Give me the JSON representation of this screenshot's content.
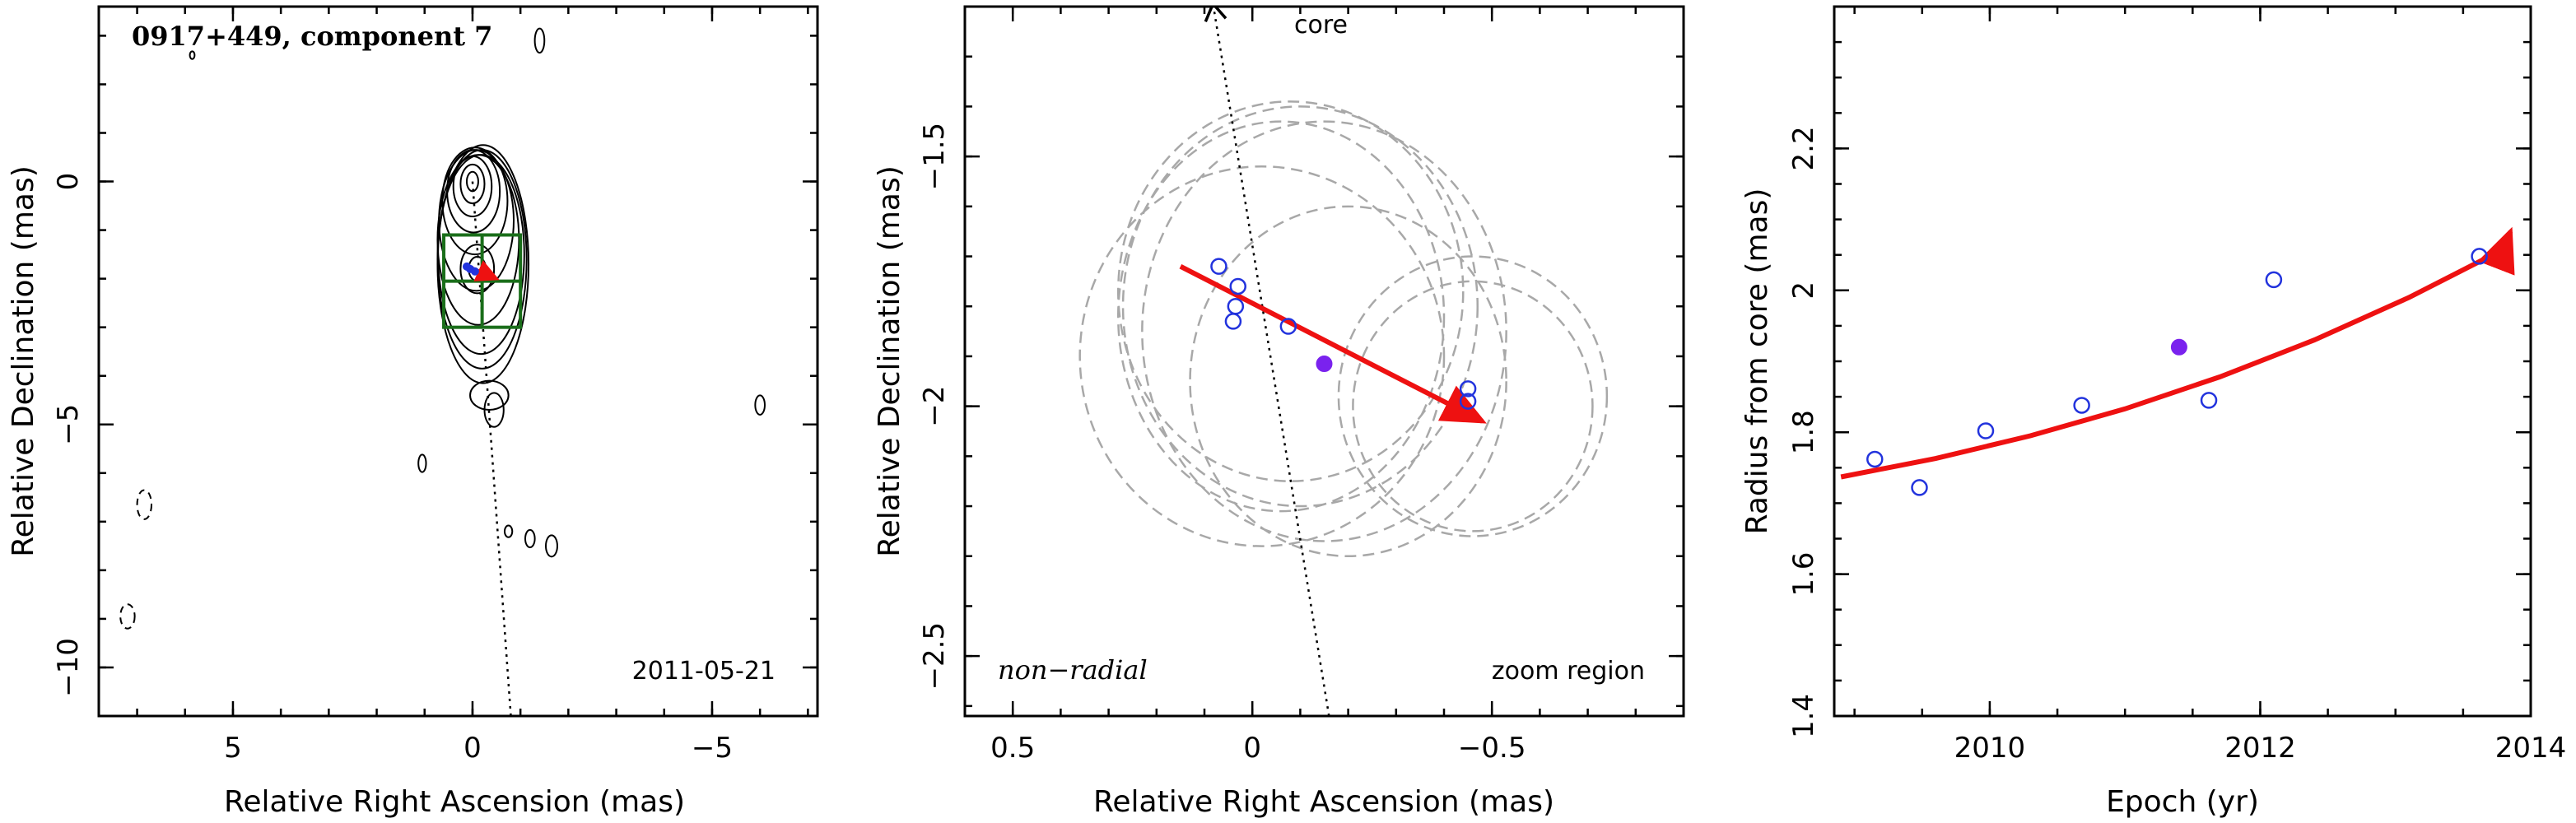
{
  "chart_data": [
    {
      "type": "contour",
      "title": "0917+449, component 7",
      "epoch_label": "2011-05-21",
      "xlabel": "Relative Right Ascension (mas)",
      "ylabel": "Relative Declination (mas)",
      "xlim": [
        7.8,
        -7.2
      ],
      "ylim": [
        -11.0,
        3.6
      ],
      "xticks": [
        5,
        0,
        -5
      ],
      "xtick_labels": [
        "5",
        "0",
        "−5"
      ],
      "yticks": [
        0,
        -5,
        -10
      ],
      "ytick_labels": [
        "0",
        "−5",
        "−10"
      ],
      "zoom_box": {
        "x": [
          0.6,
          -1.0
        ],
        "y": [
          -1.1,
          -3.0
        ]
      },
      "contours_positive": [
        {
          "cx": 0.0,
          "cy": 0.0,
          "rx": 0.12,
          "ry": 0.2
        },
        {
          "cx": 0.0,
          "cy": -0.05,
          "rx": 0.25,
          "ry": 0.4
        },
        {
          "cx": 0.0,
          "cy": -0.1,
          "rx": 0.4,
          "ry": 0.62
        },
        {
          "cx": -0.02,
          "cy": -0.2,
          "rx": 0.55,
          "ry": 0.85
        },
        {
          "cx": -0.05,
          "cy": -0.4,
          "rx": 0.68,
          "ry": 1.1
        },
        {
          "cx": -0.08,
          "cy": -0.8,
          "rx": 0.78,
          "ry": 1.45
        },
        {
          "cx": -0.12,
          "cy": -1.2,
          "rx": 0.85,
          "ry": 1.75
        },
        {
          "cx": -0.18,
          "cy": -1.5,
          "rx": 0.9,
          "ry": 2.05
        },
        {
          "cx": -0.2,
          "cy": -1.6,
          "rx": 0.93,
          "ry": 2.25
        },
        {
          "cx": -0.22,
          "cy": -1.7,
          "rx": 0.95,
          "ry": 2.45
        },
        {
          "cx": -0.1,
          "cy": -1.8,
          "rx": 0.35,
          "ry": 0.5
        },
        {
          "cx": -0.1,
          "cy": -1.8,
          "rx": 0.18,
          "ry": 0.25
        },
        {
          "cx": -0.35,
          "cy": -4.4,
          "rx": 0.4,
          "ry": 0.3
        },
        {
          "cx": -0.45,
          "cy": -4.7,
          "rx": 0.2,
          "ry": 0.35
        },
        {
          "cx": -1.4,
          "cy": 2.9,
          "rx": 0.1,
          "ry": 0.25
        },
        {
          "cx": 1.05,
          "cy": -5.8,
          "rx": 0.08,
          "ry": 0.18
        },
        {
          "cx": -6.0,
          "cy": -4.6,
          "rx": 0.1,
          "ry": 0.2
        },
        {
          "cx": -0.75,
          "cy": -7.2,
          "rx": 0.08,
          "ry": 0.12
        },
        {
          "cx": -1.2,
          "cy": -7.35,
          "rx": 0.1,
          "ry": 0.18
        },
        {
          "cx": -1.65,
          "cy": -7.5,
          "rx": 0.12,
          "ry": 0.22
        },
        {
          "cx": 5.85,
          "cy": 2.6,
          "rx": 0.05,
          "ry": 0.08
        }
      ],
      "contours_negative": [
        {
          "cx": 6.85,
          "cy": -6.65,
          "rx": 0.15,
          "ry": 0.3
        },
        {
          "cx": 7.2,
          "cy": -8.95,
          "rx": 0.15,
          "ry": 0.25
        }
      ],
      "core_line": {
        "from": [
          0.0,
          0.0
        ],
        "to": [
          -0.8,
          -11.0
        ]
      },
      "motion_arrow": {
        "from": [
          0.15,
          -1.72
        ],
        "to": [
          -0.5,
          -2.0
        ]
      }
    },
    {
      "type": "scatter",
      "xlabel": "Relative Right Ascension (mas)",
      "ylabel": "Relative Declination (mas)",
      "xlim": [
        0.6,
        -0.9
      ],
      "ylim": [
        -2.62,
        -1.2
      ],
      "xticks": [
        0.5,
        0,
        -0.5
      ],
      "xtick_labels": [
        "0.5",
        "0",
        "−0.5"
      ],
      "yticks": [
        -1.5,
        -2,
        -2.5
      ],
      "ytick_labels": [
        "−1.5",
        "−2",
        "−2.5"
      ],
      "annotation_left": "non−radial",
      "annotation_right": "zoom region",
      "core_label": "core",
      "core_line": {
        "from": [
          0.08,
          -1.2
        ],
        "to": [
          -0.16,
          -2.62
        ]
      },
      "points_open": [
        {
          "x": 0.07,
          "y": -1.72
        },
        {
          "x": 0.03,
          "y": -1.76
        },
        {
          "x": 0.035,
          "y": -1.8
        },
        {
          "x": 0.04,
          "y": -1.83
        },
        {
          "x": -0.075,
          "y": -1.84
        },
        {
          "x": -0.45,
          "y": -1.965
        },
        {
          "x": -0.45,
          "y": -1.99
        }
      ],
      "points_filled": [
        {
          "x": -0.15,
          "y": -1.915
        }
      ],
      "motion_arrow": {
        "from": [
          0.15,
          -1.72
        ],
        "to": [
          -0.48,
          -2.03
        ]
      },
      "component_ellipses": [
        {
          "cx": -0.08,
          "cy": -1.77,
          "rx": 0.36,
          "ry": 0.38
        },
        {
          "cx": -0.1,
          "cy": -1.8,
          "rx": 0.37,
          "ry": 0.4
        },
        {
          "cx": -0.15,
          "cy": -1.85,
          "rx": 0.38,
          "ry": 0.42
        },
        {
          "cx": -0.06,
          "cy": -1.82,
          "rx": 0.34,
          "ry": 0.39
        },
        {
          "cx": -0.02,
          "cy": -1.9,
          "rx": 0.38,
          "ry": 0.38
        },
        {
          "cx": -0.2,
          "cy": -1.95,
          "rx": 0.33,
          "ry": 0.35
        },
        {
          "cx": -0.46,
          "cy": -1.98,
          "rx": 0.28,
          "ry": 0.28
        },
        {
          "cx": -0.46,
          "cy": -2.0,
          "rx": 0.25,
          "ry": 0.25
        }
      ]
    },
    {
      "type": "scatter",
      "xlabel": "Epoch (yr)",
      "ylabel": "Radius from core (mas)",
      "xlim": [
        2008.85,
        2014.0
      ],
      "ylim": [
        1.4,
        2.4
      ],
      "xticks": [
        2010,
        2012,
        2014
      ],
      "xtick_labels": [
        "2010",
        "2012",
        "2014"
      ],
      "yticks": [
        1.4,
        1.6,
        1.8,
        2.0,
        2.2
      ],
      "ytick_labels": [
        "1.4",
        "1.6",
        "1.8",
        "2",
        "2.2"
      ],
      "points_open": [
        {
          "x": 2009.15,
          "y": 1.762
        },
        {
          "x": 2009.48,
          "y": 1.722
        },
        {
          "x": 2009.97,
          "y": 1.802
        },
        {
          "x": 2010.68,
          "y": 1.838
        },
        {
          "x": 2011.62,
          "y": 1.845
        },
        {
          "x": 2012.1,
          "y": 2.015
        },
        {
          "x": 2013.62,
          "y": 2.048
        }
      ],
      "points_filled": [
        {
          "x": 2011.4,
          "y": 1.92
        }
      ],
      "trend_curve": {
        "x": [
          2008.9,
          2009.6,
          2010.3,
          2011.0,
          2011.7,
          2012.4,
          2013.1,
          2013.8
        ],
        "y": [
          1.737,
          1.763,
          1.795,
          1.833,
          1.878,
          1.93,
          1.99,
          2.058
        ]
      },
      "trend_arrow_to": [
        2013.85,
        2.083
      ]
    }
  ]
}
